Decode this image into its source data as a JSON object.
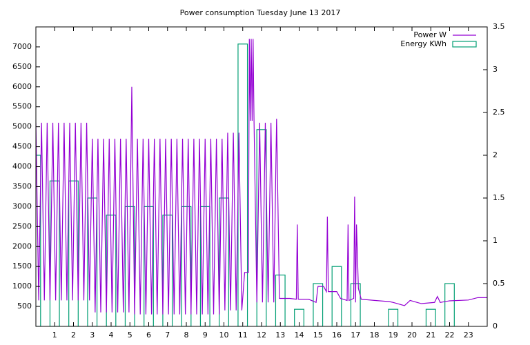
{
  "chart_data": {
    "type": "line",
    "title": "Power consumption Tuesday June 13 2017",
    "xlim": [
      0,
      24
    ],
    "xticks": [
      1,
      2,
      3,
      4,
      5,
      6,
      7,
      8,
      9,
      10,
      11,
      12,
      13,
      14,
      15,
      16,
      17,
      18,
      19,
      20,
      21,
      22,
      23
    ],
    "ylim": [
      0,
      7500
    ],
    "yticks": [
      500,
      1000,
      1500,
      2000,
      2500,
      3000,
      3500,
      4000,
      4500,
      5000,
      5500,
      6000,
      6500,
      7000
    ],
    "y2lim": [
      0,
      3.5
    ],
    "y2ticks": [
      0,
      0.5,
      1,
      1.5,
      2,
      2.5,
      3,
      3.5
    ],
    "legend": "top-right",
    "grid": false,
    "series": [
      {
        "name": "Power W",
        "color": "#9400d3",
        "style": "line",
        "x": [
          0,
          0.15,
          0.3,
          0.45,
          0.6,
          0.75,
          0.9,
          1.05,
          1.2,
          1.35,
          1.5,
          1.65,
          1.8,
          1.95,
          2.1,
          2.25,
          2.4,
          2.55,
          2.7,
          2.85,
          3,
          3.15,
          3.3,
          3.45,
          3.6,
          3.75,
          3.9,
          4.05,
          4.2,
          4.35,
          4.5,
          4.65,
          4.8,
          4.95,
          5.1,
          5.25,
          5.4,
          5.55,
          5.7,
          5.85,
          6,
          6.15,
          6.3,
          6.45,
          6.6,
          6.75,
          6.9,
          7.05,
          7.2,
          7.35,
          7.5,
          7.65,
          7.8,
          7.95,
          8.1,
          8.25,
          8.4,
          8.55,
          8.7,
          8.85,
          9,
          9.15,
          9.3,
          9.45,
          9.6,
          9.75,
          9.9,
          10.05,
          10.2,
          10.35,
          10.5,
          10.65,
          10.8,
          10.95,
          11.1,
          11.3,
          11.35,
          11.4,
          11.45,
          11.5,
          11.55,
          11.6,
          11.75,
          11.9,
          12.05,
          12.2,
          12.35,
          12.5,
          12.65,
          12.8,
          12.95,
          13.5,
          13.85,
          13.9,
          13.95,
          14.5,
          14.9,
          15,
          15.3,
          15.45,
          15.5,
          15.55,
          16,
          16.2,
          16.55,
          16.6,
          16.65,
          16.9,
          16.95,
          17,
          17.05,
          17.15,
          17.3,
          18,
          18.8,
          19,
          19.6,
          19.9,
          20.5,
          21.2,
          21.35,
          21.5,
          22,
          23,
          23.5,
          24
        ],
        "values": [
          5100,
          650,
          5100,
          650,
          5100,
          650,
          5100,
          650,
          5100,
          650,
          5100,
          650,
          5100,
          650,
          5100,
          650,
          5100,
          650,
          5100,
          650,
          4700,
          350,
          4700,
          350,
          4700,
          350,
          4700,
          350,
          4700,
          350,
          4700,
          350,
          4700,
          350,
          6000,
          300,
          4700,
          300,
          4700,
          300,
          4700,
          300,
          4700,
          300,
          4700,
          300,
          4700,
          300,
          4700,
          300,
          4700,
          300,
          4700,
          300,
          4700,
          300,
          4700,
          300,
          4700,
          300,
          4700,
          300,
          4700,
          300,
          4700,
          300,
          4700,
          400,
          4850,
          400,
          4850,
          400,
          4850,
          400,
          1350,
          1350,
          7200,
          5150,
          7200,
          5150,
          7200,
          5150,
          600,
          5100,
          600,
          5100,
          600,
          5100,
          600,
          5200,
          700,
          700,
          680,
          2550,
          680,
          680,
          600,
          1000,
          1000,
          870,
          2750,
          870,
          870,
          700,
          650,
          2550,
          650,
          700,
          3250,
          600,
          2550,
          950,
          680,
          650,
          620,
          600,
          520,
          650,
          570,
          600,
          750,
          600,
          640,
          660,
          720,
          720
        ]
      },
      {
        "name": "Energy KWh",
        "color": "#009e73",
        "style": "box",
        "axis": "y2",
        "box_width": 0.5,
        "x": [
          0,
          1,
          2,
          3,
          4,
          5,
          6,
          7,
          8,
          9,
          10,
          11,
          12,
          13,
          14,
          15,
          16,
          17,
          18,
          19,
          20,
          21,
          22,
          23
        ],
        "values": [
          2.0,
          1.7,
          1.7,
          1.5,
          1.3,
          1.4,
          1.4,
          1.3,
          1.4,
          1.4,
          1.5,
          3.3,
          2.3,
          0.6,
          0.2,
          0.5,
          0.7,
          0.5,
          0,
          0.2,
          0,
          0.2,
          0.5,
          0
        ]
      }
    ]
  }
}
